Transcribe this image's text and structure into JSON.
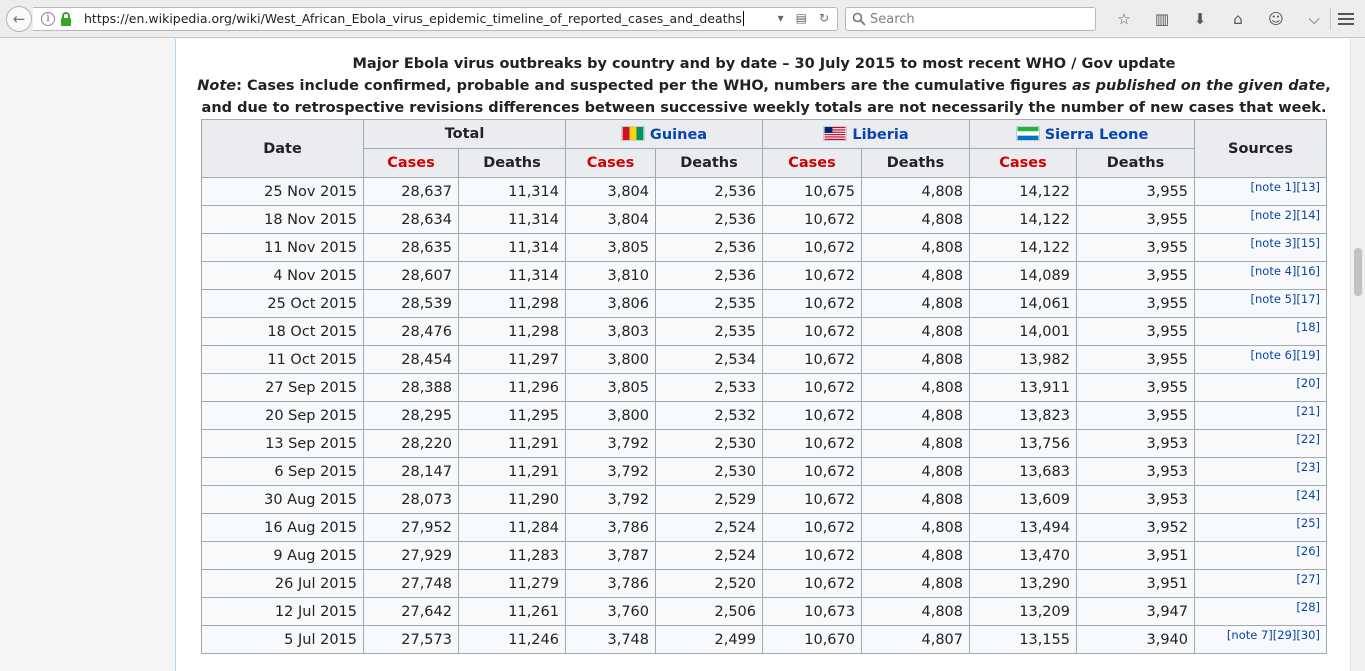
{
  "browser": {
    "url": "https://en.wikipedia.org/wiki/West_African_Ebola_virus_epidemic_timeline_of_reported_cases_and_deaths",
    "search_placeholder": "Search"
  },
  "caption": {
    "title": "Major Ebola virus outbreaks by country and by date – 30 July 2015 to most recent WHO / Gov update",
    "note_label": "Note",
    "note_text_1": ": Cases include confirmed, probable and suspected per the WHO, numbers are the cumulative figures ",
    "note_italic": "as published on the given date",
    "note_text_2": ",",
    "note_line3": "and due to retrospective revisions differences between successive weekly totals are not necessarily the number of new cases that week."
  },
  "table": {
    "headers": {
      "date": "Date",
      "total": "Total",
      "guinea": "Guinea",
      "liberia": "Liberia",
      "sierra_leone": "Sierra Leone",
      "sources": "Sources",
      "cases": "Cases",
      "deaths": "Deaths"
    },
    "rows": [
      {
        "date": "25 Nov 2015",
        "tc": "28,637",
        "td": "11,314",
        "gc": "3,804",
        "gd": "2,536",
        "lc": "10,675",
        "ld": "4,808",
        "sc": "14,122",
        "sd": "3,955",
        "src": "[note 1][13]"
      },
      {
        "date": "18 Nov 2015",
        "tc": "28,634",
        "td": "11,314",
        "gc": "3,804",
        "gd": "2,536",
        "lc": "10,672",
        "ld": "4,808",
        "sc": "14,122",
        "sd": "3,955",
        "src": "[note 2][14]"
      },
      {
        "date": "11 Nov 2015",
        "tc": "28,635",
        "td": "11,314",
        "gc": "3,805",
        "gd": "2,536",
        "lc": "10,672",
        "ld": "4,808",
        "sc": "14,122",
        "sd": "3,955",
        "src": "[note 3][15]"
      },
      {
        "date": "4 Nov 2015",
        "tc": "28,607",
        "td": "11,314",
        "gc": "3,810",
        "gd": "2,536",
        "lc": "10,672",
        "ld": "4,808",
        "sc": "14,089",
        "sd": "3,955",
        "src": "[note 4][16]"
      },
      {
        "date": "25 Oct 2015",
        "tc": "28,539",
        "td": "11,298",
        "gc": "3,806",
        "gd": "2,535",
        "lc": "10,672",
        "ld": "4,808",
        "sc": "14,061",
        "sd": "3,955",
        "src": "[note 5][17]"
      },
      {
        "date": "18 Oct 2015",
        "tc": "28,476",
        "td": "11,298",
        "gc": "3,803",
        "gd": "2,535",
        "lc": "10,672",
        "ld": "4,808",
        "sc": "14,001",
        "sd": "3,955",
        "src": "[18]"
      },
      {
        "date": "11 Oct 2015",
        "tc": "28,454",
        "td": "11,297",
        "gc": "3,800",
        "gd": "2,534",
        "lc": "10,672",
        "ld": "4,808",
        "sc": "13,982",
        "sd": "3,955",
        "src": "[note 6][19]"
      },
      {
        "date": "27 Sep 2015",
        "tc": "28,388",
        "td": "11,296",
        "gc": "3,805",
        "gd": "2,533",
        "lc": "10,672",
        "ld": "4,808",
        "sc": "13,911",
        "sd": "3,955",
        "src": "[20]"
      },
      {
        "date": "20 Sep 2015",
        "tc": "28,295",
        "td": "11,295",
        "gc": "3,800",
        "gd": "2,532",
        "lc": "10,672",
        "ld": "4,808",
        "sc": "13,823",
        "sd": "3,955",
        "src": "[21]"
      },
      {
        "date": "13 Sep 2015",
        "tc": "28,220",
        "td": "11,291",
        "gc": "3,792",
        "gd": "2,530",
        "lc": "10,672",
        "ld": "4,808",
        "sc": "13,756",
        "sd": "3,953",
        "src": "[22]"
      },
      {
        "date": "6 Sep 2015",
        "tc": "28,147",
        "td": "11,291",
        "gc": "3,792",
        "gd": "2,530",
        "lc": "10,672",
        "ld": "4,808",
        "sc": "13,683",
        "sd": "3,953",
        "src": "[23]"
      },
      {
        "date": "30 Aug 2015",
        "tc": "28,073",
        "td": "11,290",
        "gc": "3,792",
        "gd": "2,529",
        "lc": "10,672",
        "ld": "4,808",
        "sc": "13,609",
        "sd": "3,953",
        "src": "[24]"
      },
      {
        "date": "16 Aug 2015",
        "tc": "27,952",
        "td": "11,284",
        "gc": "3,786",
        "gd": "2,524",
        "lc": "10,672",
        "ld": "4,808",
        "sc": "13,494",
        "sd": "3,952",
        "src": "[25]"
      },
      {
        "date": "9 Aug 2015",
        "tc": "27,929",
        "td": "11,283",
        "gc": "3,787",
        "gd": "2,524",
        "lc": "10,672",
        "ld": "4,808",
        "sc": "13,470",
        "sd": "3,951",
        "src": "[26]"
      },
      {
        "date": "26 Jul 2015",
        "tc": "27,748",
        "td": "11,279",
        "gc": "3,786",
        "gd": "2,520",
        "lc": "10,672",
        "ld": "4,808",
        "sc": "13,290",
        "sd": "3,951",
        "src": "[27]"
      },
      {
        "date": "12 Jul 2015",
        "tc": "27,642",
        "td": "11,261",
        "gc": "3,760",
        "gd": "2,506",
        "lc": "10,673",
        "ld": "4,808",
        "sc": "13,209",
        "sd": "3,947",
        "src": "[28]"
      },
      {
        "date": "5 Jul 2015",
        "tc": "27,573",
        "td": "11,246",
        "gc": "3,748",
        "gd": "2,499",
        "lc": "10,670",
        "ld": "4,807",
        "sc": "13,155",
        "sd": "3,940",
        "src": "[note 7][29][30]"
      }
    ]
  },
  "colors": {
    "cases_header": "#d30000",
    "link": "#0645ad",
    "header_bg": "#eaecf0"
  }
}
